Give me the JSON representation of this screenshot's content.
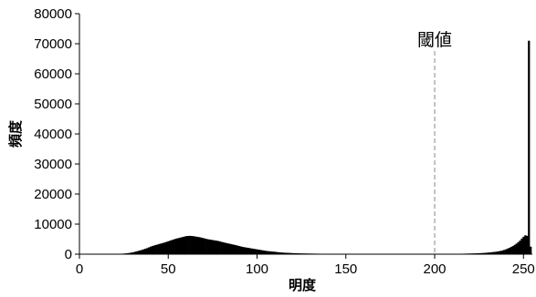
{
  "chart_data": {
    "type": "bar",
    "title": "",
    "xlabel": "明度",
    "ylabel": "頻度",
    "xlim": [
      0,
      255
    ],
    "ylim": [
      0,
      80000
    ],
    "x_ticks": [
      0,
      50,
      100,
      150,
      200,
      250
    ],
    "y_ticks": [
      0,
      10000,
      20000,
      30000,
      40000,
      50000,
      60000,
      70000,
      80000
    ],
    "grid": false,
    "threshold": {
      "x": 200,
      "label": "閾値",
      "style": "dashed"
    },
    "bin_width": 1,
    "series": [
      {
        "color": "#000000",
        "x": [
          15,
          20,
          25,
          28,
          30,
          32,
          35,
          38,
          40,
          42,
          45,
          48,
          50,
          52,
          54,
          56,
          58,
          60,
          62,
          64,
          66,
          68,
          70,
          72,
          75,
          78,
          80,
          82,
          85,
          88,
          90,
          92,
          95,
          98,
          100,
          102,
          105,
          108,
          110,
          112,
          115,
          118,
          120,
          125,
          130,
          135,
          140,
          145,
          150,
          155,
          160,
          165,
          170,
          175,
          180,
          185,
          190,
          195,
          200,
          205,
          210,
          215,
          220,
          225,
          228,
          230,
          232,
          235,
          238,
          240,
          242,
          244,
          246,
          248,
          249,
          250,
          251,
          252,
          253,
          254,
          255
        ],
        "values": [
          0,
          30,
          200,
          400,
          600,
          900,
          1400,
          2000,
          2500,
          2900,
          3400,
          3900,
          4300,
          4700,
          5100,
          5400,
          5700,
          6000,
          6100,
          6000,
          5800,
          5600,
          5300,
          5000,
          4700,
          4400,
          4100,
          3800,
          3400,
          3000,
          2700,
          2400,
          2100,
          1800,
          1600,
          1400,
          1100,
          900,
          800,
          650,
          500,
          420,
          350,
          260,
          200,
          160,
          130,
          110,
          90,
          80,
          70,
          60,
          50,
          40,
          40,
          40,
          40,
          40,
          40,
          60,
          100,
          150,
          220,
          320,
          420,
          520,
          650,
          850,
          1200,
          1600,
          2100,
          2700,
          3500,
          4500,
          5200,
          5800,
          6300,
          6100,
          71000,
          2500,
          0
        ]
      }
    ]
  }
}
